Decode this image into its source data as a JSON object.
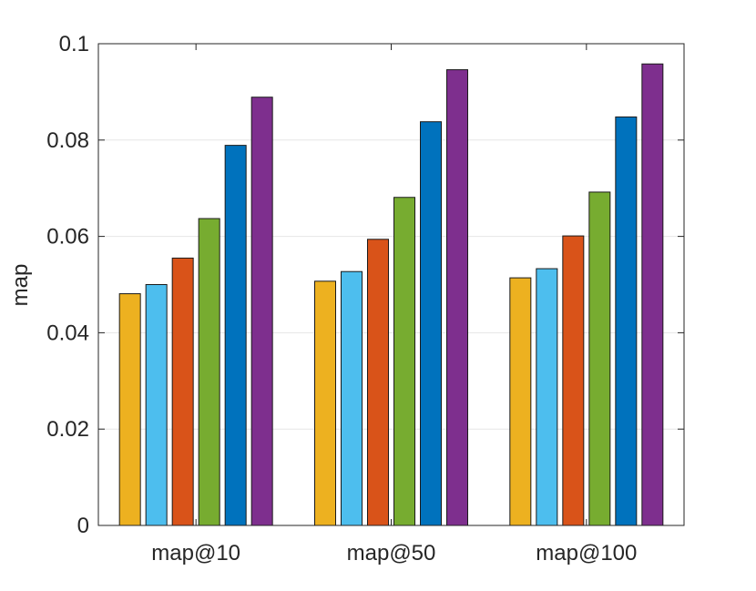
{
  "chart_data": {
    "type": "bar",
    "title": "",
    "xlabel": "",
    "ylabel": "map",
    "ylim": [
      0,
      0.1
    ],
    "yticks": [
      "0",
      "0.02",
      "0.04",
      "0.06",
      "0.08",
      "0.1"
    ],
    "ytick_values": [
      0,
      0.02,
      0.04,
      0.06,
      0.08,
      0.1
    ],
    "grid": "horizontal",
    "categories": [
      "map@10",
      "map@50",
      "map@100"
    ],
    "series": [
      {
        "color": "#EDB120",
        "values": [
          0.0481,
          0.0507,
          0.0514
        ]
      },
      {
        "color": "#4DBEEE",
        "values": [
          0.05,
          0.0527,
          0.0533
        ]
      },
      {
        "color": "#D95319",
        "values": [
          0.0555,
          0.0594,
          0.0601
        ]
      },
      {
        "color": "#77AC30",
        "values": [
          0.0637,
          0.0681,
          0.0692
        ]
      },
      {
        "color": "#0072BD",
        "values": [
          0.0789,
          0.0838,
          0.0848
        ]
      },
      {
        "color": "#7E2F8E",
        "values": [
          0.0889,
          0.0946,
          0.0958
        ]
      }
    ]
  }
}
